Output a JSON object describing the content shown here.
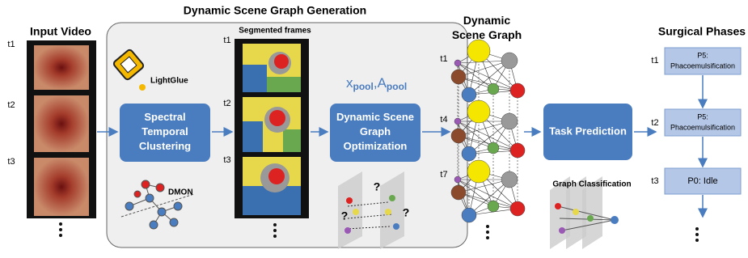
{
  "input_video": {
    "title": "Input Video",
    "time_labels": [
      "t1",
      "t2",
      "t3"
    ]
  },
  "generation": {
    "title": "Dynamic Scene Graph Generation",
    "segmented_title": "Segmented frames",
    "time_labels": [
      "t1",
      "t2",
      "t3"
    ],
    "lightglue": "LightGlue",
    "clustering": [
      "Spectral",
      "Temporal",
      "Clustering"
    ],
    "dmon": "DMON",
    "pool": {
      "x": "x",
      "x_sub": "pool",
      "sep": ",",
      "a": "A",
      "a_sub": "pool"
    },
    "optimization": [
      "Dynamic Scene",
      "Graph",
      "Optimization"
    ],
    "unknown": "?"
  },
  "scene_graph": {
    "title": [
      "Dynamic",
      "Scene Graph"
    ],
    "time_labels": [
      "t1",
      "t4",
      "t7"
    ]
  },
  "prediction": {
    "box": "Task Prediction",
    "classification": "Graph Classification"
  },
  "phases": {
    "title": "Surgical Phases",
    "time_labels": [
      "t1",
      "t2",
      "t3"
    ],
    "boxes": [
      [
        "P5:",
        "Phacoemulsification"
      ],
      [
        "P5:",
        "Phacoemulsification"
      ],
      [
        "P0: Idle"
      ]
    ]
  }
}
